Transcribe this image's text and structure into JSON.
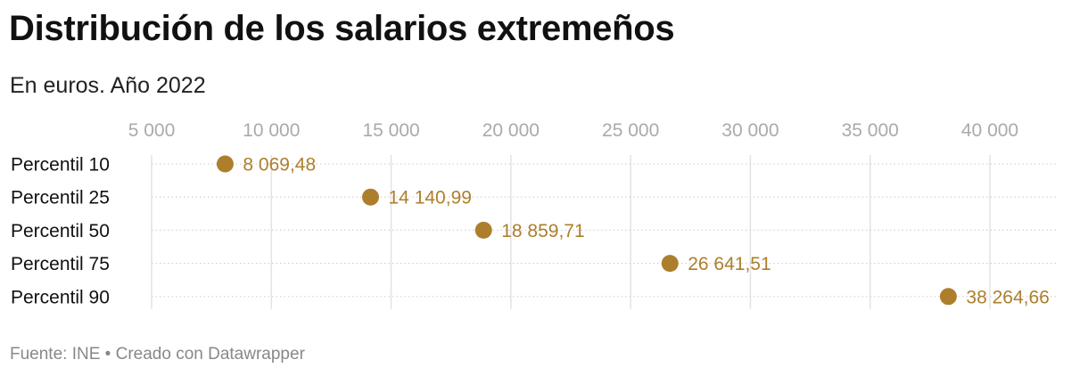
{
  "title": "Distribución de los salarios extremeños",
  "subtitle": "En euros. Año 2022",
  "footer": {
    "source": "Fuente: INE",
    "separator": "•",
    "credit": "Creado con Datawrapper"
  },
  "chart_data": {
    "type": "scatter",
    "title": "Distribución de los salarios extremeños",
    "subtitle": "En euros. Año 2022",
    "xlim": [
      5000,
      40000
    ],
    "xticks": [
      5000,
      10000,
      15000,
      20000,
      25000,
      30000,
      35000,
      40000
    ],
    "xtick_labels": [
      "5 000",
      "10 000",
      "15 000",
      "20 000",
      "25 000",
      "30 000",
      "35 000",
      "40 000"
    ],
    "grid": true,
    "color": "#ad7f2c",
    "categories": [
      "Percentil 10",
      "Percentil 25",
      "Percentil 50",
      "Percentil 75",
      "Percentil 90"
    ],
    "values": [
      8069.48,
      14140.99,
      18859.71,
      26641.51,
      38264.66
    ],
    "value_labels": [
      "8 069,48",
      "14 140,99",
      "18 859,71",
      "26 641,51",
      "38 264,66"
    ]
  }
}
